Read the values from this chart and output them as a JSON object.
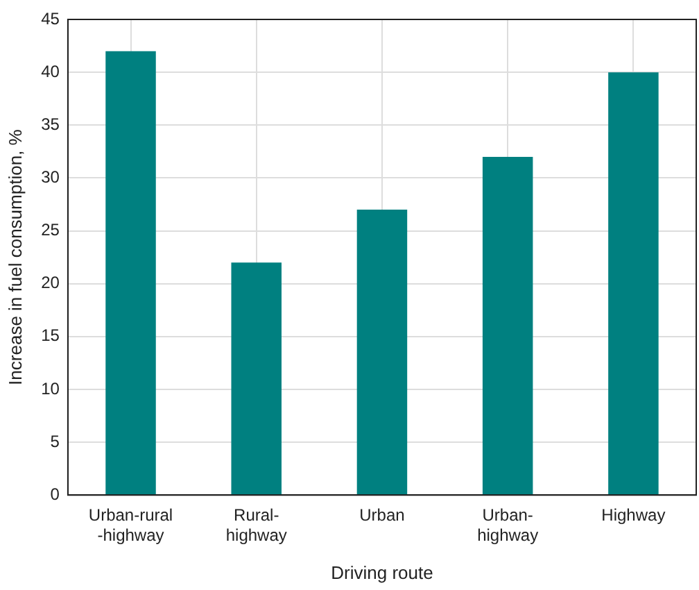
{
  "chart_data": {
    "type": "bar",
    "xlabel": "Driving route",
    "ylabel": "Increase in fuel consumption, %",
    "categories": [
      "Urban-rural\n-highway",
      "Rural-\nhighway",
      "Urban",
      "Urban-\nhighway",
      "Highway"
    ],
    "values": [
      42,
      22,
      27,
      32,
      40
    ],
    "color": "#008080",
    "ylim": [
      0,
      45
    ],
    "yticks": [
      0,
      5,
      10,
      15,
      20,
      25,
      30,
      35,
      40,
      45
    ],
    "grid": true
  }
}
